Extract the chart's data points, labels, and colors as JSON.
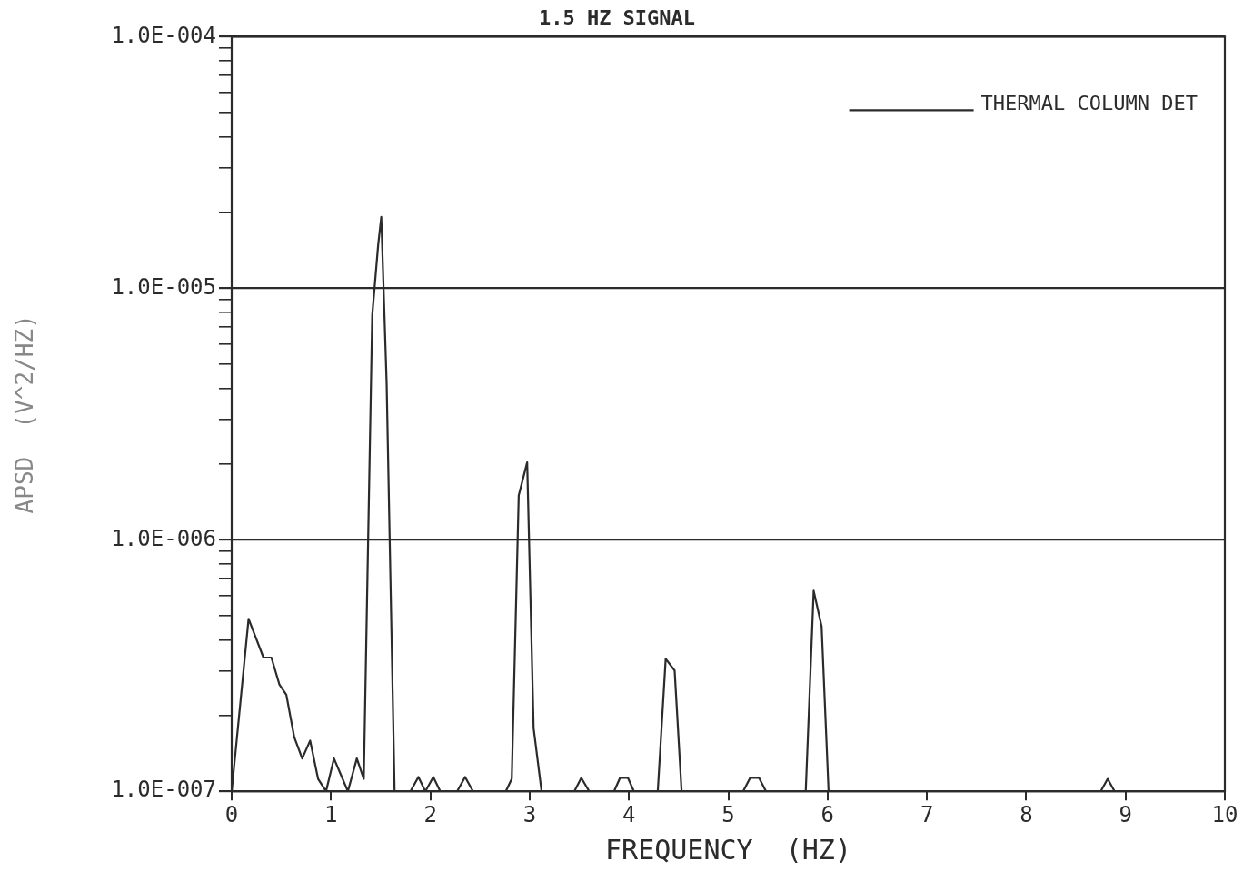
{
  "chart_data": {
    "type": "line",
    "title": "1.5 HZ SIGNAL",
    "xlabel": "FREQUENCY  (HZ)",
    "ylabel": "APSD  (V^2/HZ)",
    "x": [
      0,
      0.17,
      0.32,
      0.4,
      0.48,
      0.55,
      0.63,
      0.71,
      0.79,
      0.87,
      0.95,
      1.03,
      1.17,
      1.26,
      1.33,
      1.415,
      1.475,
      1.506,
      1.56,
      1.64,
      1.8,
      1.88,
      1.95,
      2.03,
      2.1,
      2.27,
      2.35,
      2.43,
      2.76,
      2.82,
      2.89,
      2.975,
      3.04,
      3.12,
      3.45,
      3.52,
      3.6,
      3.85,
      3.91,
      3.99,
      4.05,
      4.29,
      4.37,
      4.46,
      4.53,
      5.15,
      5.22,
      5.31,
      5.38,
      5.78,
      5.86,
      5.94,
      6.01,
      8.75,
      8.82,
      8.89,
      10
    ],
    "series": [
      {
        "name": "THERMAL COLUMN DET",
        "color": "#2b2b2b",
        "values": [
          1e-07,
          4.85e-07,
          3.4e-07,
          3.4e-07,
          2.66e-07,
          2.42e-07,
          1.64e-07,
          1.35e-07,
          1.59e-07,
          1.12e-07,
          1e-07,
          1.35e-07,
          1e-07,
          1.35e-07,
          1.12e-07,
          7.8e-06,
          1.49e-05,
          1.92e-05,
          4.2e-06,
          1e-07,
          1e-07,
          1.14e-07,
          1e-07,
          1.14e-07,
          1e-07,
          1e-07,
          1.14e-07,
          1e-07,
          1e-07,
          1.12e-07,
          1.5e-06,
          2.03e-06,
          1.78e-07,
          1e-07,
          1e-07,
          1.13e-07,
          1e-07,
          1e-07,
          1.13e-07,
          1.13e-07,
          1e-07,
          1e-07,
          3.36e-07,
          3.02e-07,
          1e-07,
          1e-07,
          1.13e-07,
          1.13e-07,
          1e-07,
          1e-07,
          6.27e-07,
          4.52e-07,
          1e-07,
          1e-07,
          1.12e-07,
          1e-07,
          1e-07
        ]
      }
    ],
    "xlim": [
      0,
      10
    ],
    "xticks": [
      0,
      1,
      2,
      3,
      4,
      5,
      6,
      7,
      8,
      9,
      10
    ],
    "log": "y",
    "ylim": [
      1e-07,
      0.0001
    ],
    "yticks": [
      {
        "value": 1e-07,
        "label": "1.0E-007"
      },
      {
        "value": 2e-07,
        "label": null
      },
      {
        "value": 3e-07,
        "label": null
      },
      {
        "value": 4e-07,
        "label": null
      },
      {
        "value": 5e-07,
        "label": null
      },
      {
        "value": 6e-07,
        "label": null
      },
      {
        "value": 7e-07,
        "label": null
      },
      {
        "value": 8e-07,
        "label": null
      },
      {
        "value": 9e-07,
        "label": null
      },
      {
        "value": 1e-06,
        "label": "1.0E-006"
      },
      {
        "value": 2e-06,
        "label": null
      },
      {
        "value": 3e-06,
        "label": null
      },
      {
        "value": 4e-06,
        "label": null
      },
      {
        "value": 5e-06,
        "label": null
      },
      {
        "value": 6e-06,
        "label": null
      },
      {
        "value": 7e-06,
        "label": null
      },
      {
        "value": 8e-06,
        "label": null
      },
      {
        "value": 9e-06,
        "label": null
      },
      {
        "value": 1e-05,
        "label": "1.0E-005"
      },
      {
        "value": 2e-05,
        "label": null
      },
      {
        "value": 3e-05,
        "label": null
      },
      {
        "value": 4e-05,
        "label": null
      },
      {
        "value": 5e-05,
        "label": null
      },
      {
        "value": 6e-05,
        "label": null
      },
      {
        "value": 7e-05,
        "label": null
      },
      {
        "value": 8e-05,
        "label": null
      },
      {
        "value": 9e-05,
        "label": null
      },
      {
        "value": 0.0001,
        "label": "1.0E-004"
      }
    ],
    "grid": "y",
    "legend": "top right",
    "marker": "none",
    "line_style": "solid"
  }
}
